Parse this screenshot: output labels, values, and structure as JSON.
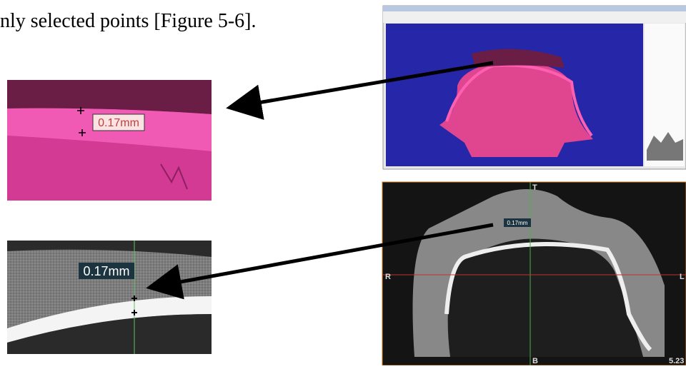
{
  "text": {
    "line": "nly selected points [Figure 5-6]."
  },
  "figures": {
    "zoom_3d": {
      "label": "0.17mm"
    },
    "zoom_ct": {
      "label": "0.17mm"
    },
    "ct_slice": {
      "label": "0.17mm",
      "top": "T",
      "left": "R",
      "right": "L",
      "bottom": "B",
      "corner": "5.23"
    }
  }
}
